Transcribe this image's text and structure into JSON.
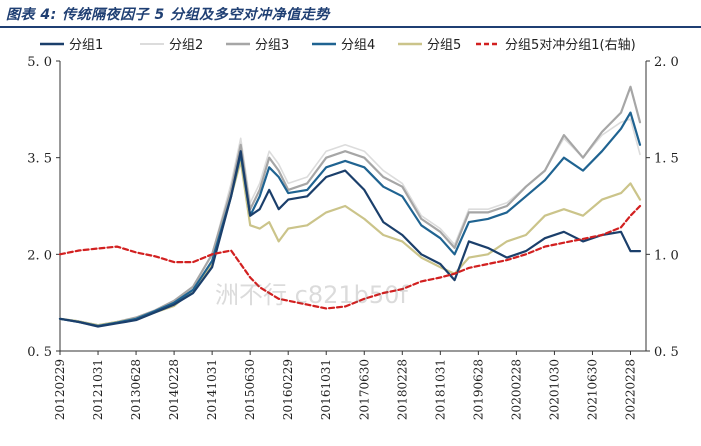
{
  "title": "图表 4:  传统隔夜因子 5 分组及多空对冲净值走势",
  "watermark": "洲不行 c821b50f",
  "chart_data": {
    "type": "line",
    "legend": [
      "分组1",
      "分组2",
      "分组3",
      "分组4",
      "分组5",
      "分组5对冲分组1(右轴)"
    ],
    "x": [
      "2012-02",
      "2012-06",
      "2012-10",
      "2013-02",
      "2013-06",
      "2013-10",
      "2014-02",
      "2014-06",
      "2014-10",
      "2015-02",
      "2015-04",
      "2015-06",
      "2015-08",
      "2015-10",
      "2015-12",
      "2016-02",
      "2016-06",
      "2016-10",
      "2017-02",
      "2017-06",
      "2017-10",
      "2018-02",
      "2018-06",
      "2018-10",
      "2019-01",
      "2019-04",
      "2019-08",
      "2019-12",
      "2020-04",
      "2020-08",
      "2020-12",
      "2021-04",
      "2021-08",
      "2021-12",
      "2022-02",
      "2022-04"
    ],
    "xticks": [
      "20120229",
      "20121031",
      "20130628",
      "20140228",
      "20141031",
      "20150630",
      "20160229",
      "20161031",
      "20170630",
      "20180228",
      "20181031",
      "20190628",
      "20200228",
      "20201030",
      "20210630",
      "20220228"
    ],
    "yticks_left": [
      "5. 0",
      "3. 5",
      "2. 0",
      "0. 5"
    ],
    "yticks_right": [
      "2. 0",
      "1. 5",
      "1. 0",
      "0. 5"
    ],
    "ylim_left": [
      0.5,
      5.0
    ],
    "ylim_right": [
      0.5,
      2.0
    ],
    "colors": {
      "分组1": "#1b3f6b",
      "分组2": "#dcdcdc",
      "分组3": "#a6a6a6",
      "分组4": "#1f6391",
      "分组5": "#cbc48a",
      "分组5对冲分组1(右轴)": "#d22020"
    },
    "series": [
      {
        "name": "分组1",
        "axis": "left",
        "values": [
          1.0,
          0.95,
          0.88,
          0.93,
          0.98,
          1.1,
          1.22,
          1.4,
          1.8,
          2.9,
          3.6,
          2.6,
          2.7,
          3.0,
          2.7,
          2.85,
          2.9,
          3.2,
          3.3,
          3.0,
          2.5,
          2.3,
          2.0,
          1.85,
          1.6,
          2.2,
          2.1,
          1.95,
          2.05,
          2.25,
          2.35,
          2.2,
          2.3,
          2.35,
          2.05,
          2.05
        ]
      },
      {
        "name": "分组2",
        "axis": "left",
        "values": [
          1.0,
          0.96,
          0.9,
          0.95,
          1.02,
          1.13,
          1.28,
          1.5,
          2.0,
          3.1,
          3.8,
          2.8,
          3.1,
          3.6,
          3.4,
          3.1,
          3.2,
          3.6,
          3.7,
          3.6,
          3.3,
          3.1,
          2.6,
          2.4,
          2.15,
          2.7,
          2.7,
          2.8,
          3.05,
          3.3,
          3.8,
          3.5,
          3.85,
          4.05,
          4.1,
          3.55
        ]
      },
      {
        "name": "分组3",
        "axis": "left",
        "values": [
          1.0,
          0.96,
          0.9,
          0.95,
          1.02,
          1.13,
          1.28,
          1.5,
          2.0,
          3.0,
          3.7,
          2.7,
          3.0,
          3.5,
          3.3,
          3.0,
          3.1,
          3.5,
          3.6,
          3.5,
          3.2,
          3.05,
          2.55,
          2.35,
          2.1,
          2.65,
          2.65,
          2.75,
          3.05,
          3.3,
          3.85,
          3.5,
          3.9,
          4.2,
          4.6,
          4.05
        ]
      },
      {
        "name": "分组4",
        "axis": "left",
        "values": [
          1.0,
          0.95,
          0.89,
          0.94,
          1.0,
          1.12,
          1.25,
          1.45,
          1.9,
          2.9,
          3.55,
          2.6,
          2.9,
          3.35,
          3.2,
          2.95,
          3.0,
          3.35,
          3.45,
          3.35,
          3.05,
          2.9,
          2.45,
          2.25,
          2.0,
          2.5,
          2.55,
          2.65,
          2.9,
          3.15,
          3.5,
          3.3,
          3.6,
          3.95,
          4.2,
          3.7
        ]
      },
      {
        "name": "分组5",
        "axis": "left",
        "values": [
          1.0,
          0.96,
          0.9,
          0.95,
          1.0,
          1.1,
          1.2,
          1.45,
          1.85,
          2.9,
          3.45,
          2.45,
          2.4,
          2.5,
          2.2,
          2.4,
          2.45,
          2.65,
          2.75,
          2.55,
          2.3,
          2.2,
          1.95,
          1.8,
          1.7,
          1.95,
          2.0,
          2.2,
          2.3,
          2.6,
          2.7,
          2.6,
          2.85,
          2.95,
          3.1,
          2.85
        ]
      },
      {
        "name": "分组5对冲分组1(右轴)",
        "axis": "right",
        "values": [
          1.0,
          1.02,
          1.03,
          1.04,
          1.01,
          0.99,
          0.96,
          0.96,
          1.0,
          1.02,
          0.95,
          0.88,
          0.83,
          0.8,
          0.77,
          0.76,
          0.74,
          0.72,
          0.73,
          0.77,
          0.8,
          0.82,
          0.86,
          0.88,
          0.9,
          0.93,
          0.95,
          0.97,
          1.0,
          1.04,
          1.06,
          1.08,
          1.1,
          1.14,
          1.2,
          1.25
        ]
      }
    ]
  }
}
